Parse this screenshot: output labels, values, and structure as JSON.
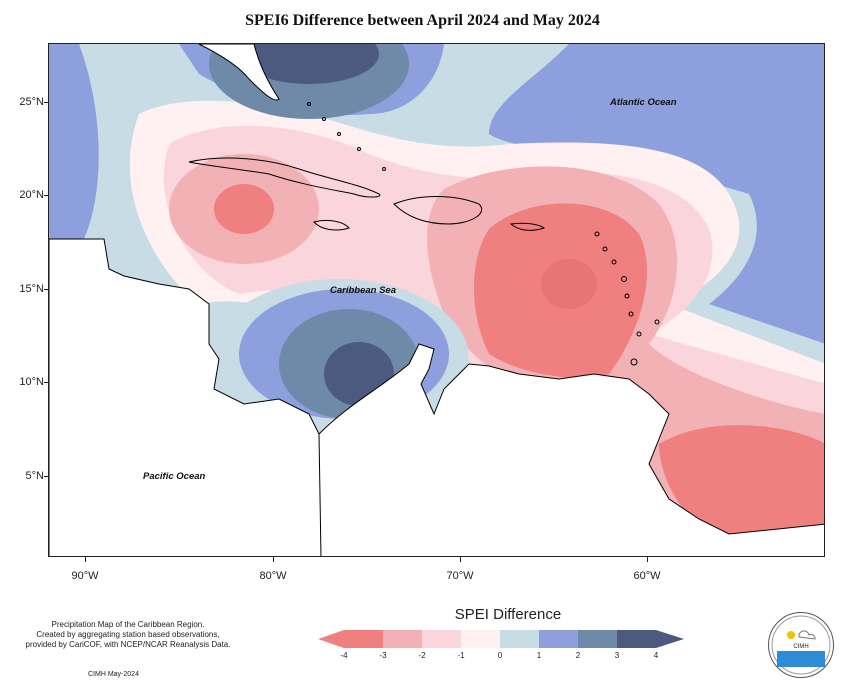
{
  "title": "SPEI6 Difference between April 2024 and May 2024",
  "map": {
    "latitude_labels": [
      "25°N",
      "20°N",
      "15°N",
      "10°N",
      "5°N"
    ],
    "longitude_labels": [
      "90°W",
      "80°W",
      "70°W",
      "60°W"
    ],
    "ocean_labels": {
      "atlantic": "Atlantic Ocean",
      "caribbean": "Caribbean Sea",
      "pacific": "Pacific Ocean"
    },
    "colors": {
      "class_m4": "#f08080",
      "class_m3": "#f2b1b5",
      "class_m2": "#fad6dc",
      "class_m1": "#fff0f2",
      "class_0": "#c8dce6",
      "class_1": "#8d9fdc",
      "class_2": "#6f8aa8",
      "class_3": "#4c5a80",
      "land_outline": "#000000",
      "land_fill": "#ffffff"
    }
  },
  "legend": {
    "title": "SPEI Difference",
    "ticks": [
      "-4",
      "-3",
      "-2",
      "-1",
      "0",
      "1",
      "2",
      "3",
      "4"
    ],
    "colors": [
      "#f08080",
      "#f2b1b5",
      "#fad6dc",
      "#fff0f2",
      "#c8dce6",
      "#8d9fdc",
      "#6f8aa8",
      "#4c5a80"
    ]
  },
  "footer": {
    "note_line1": "Precipitation Map of the Caribbean Region.",
    "note_line2": "Created by aggregating station based observations,",
    "note_line3": "provided by CariCOF, with NCEP/NCAR Reanalysis Data.",
    "credit": "CIMH May-2024"
  },
  "logo": {
    "name": "CIMH"
  }
}
